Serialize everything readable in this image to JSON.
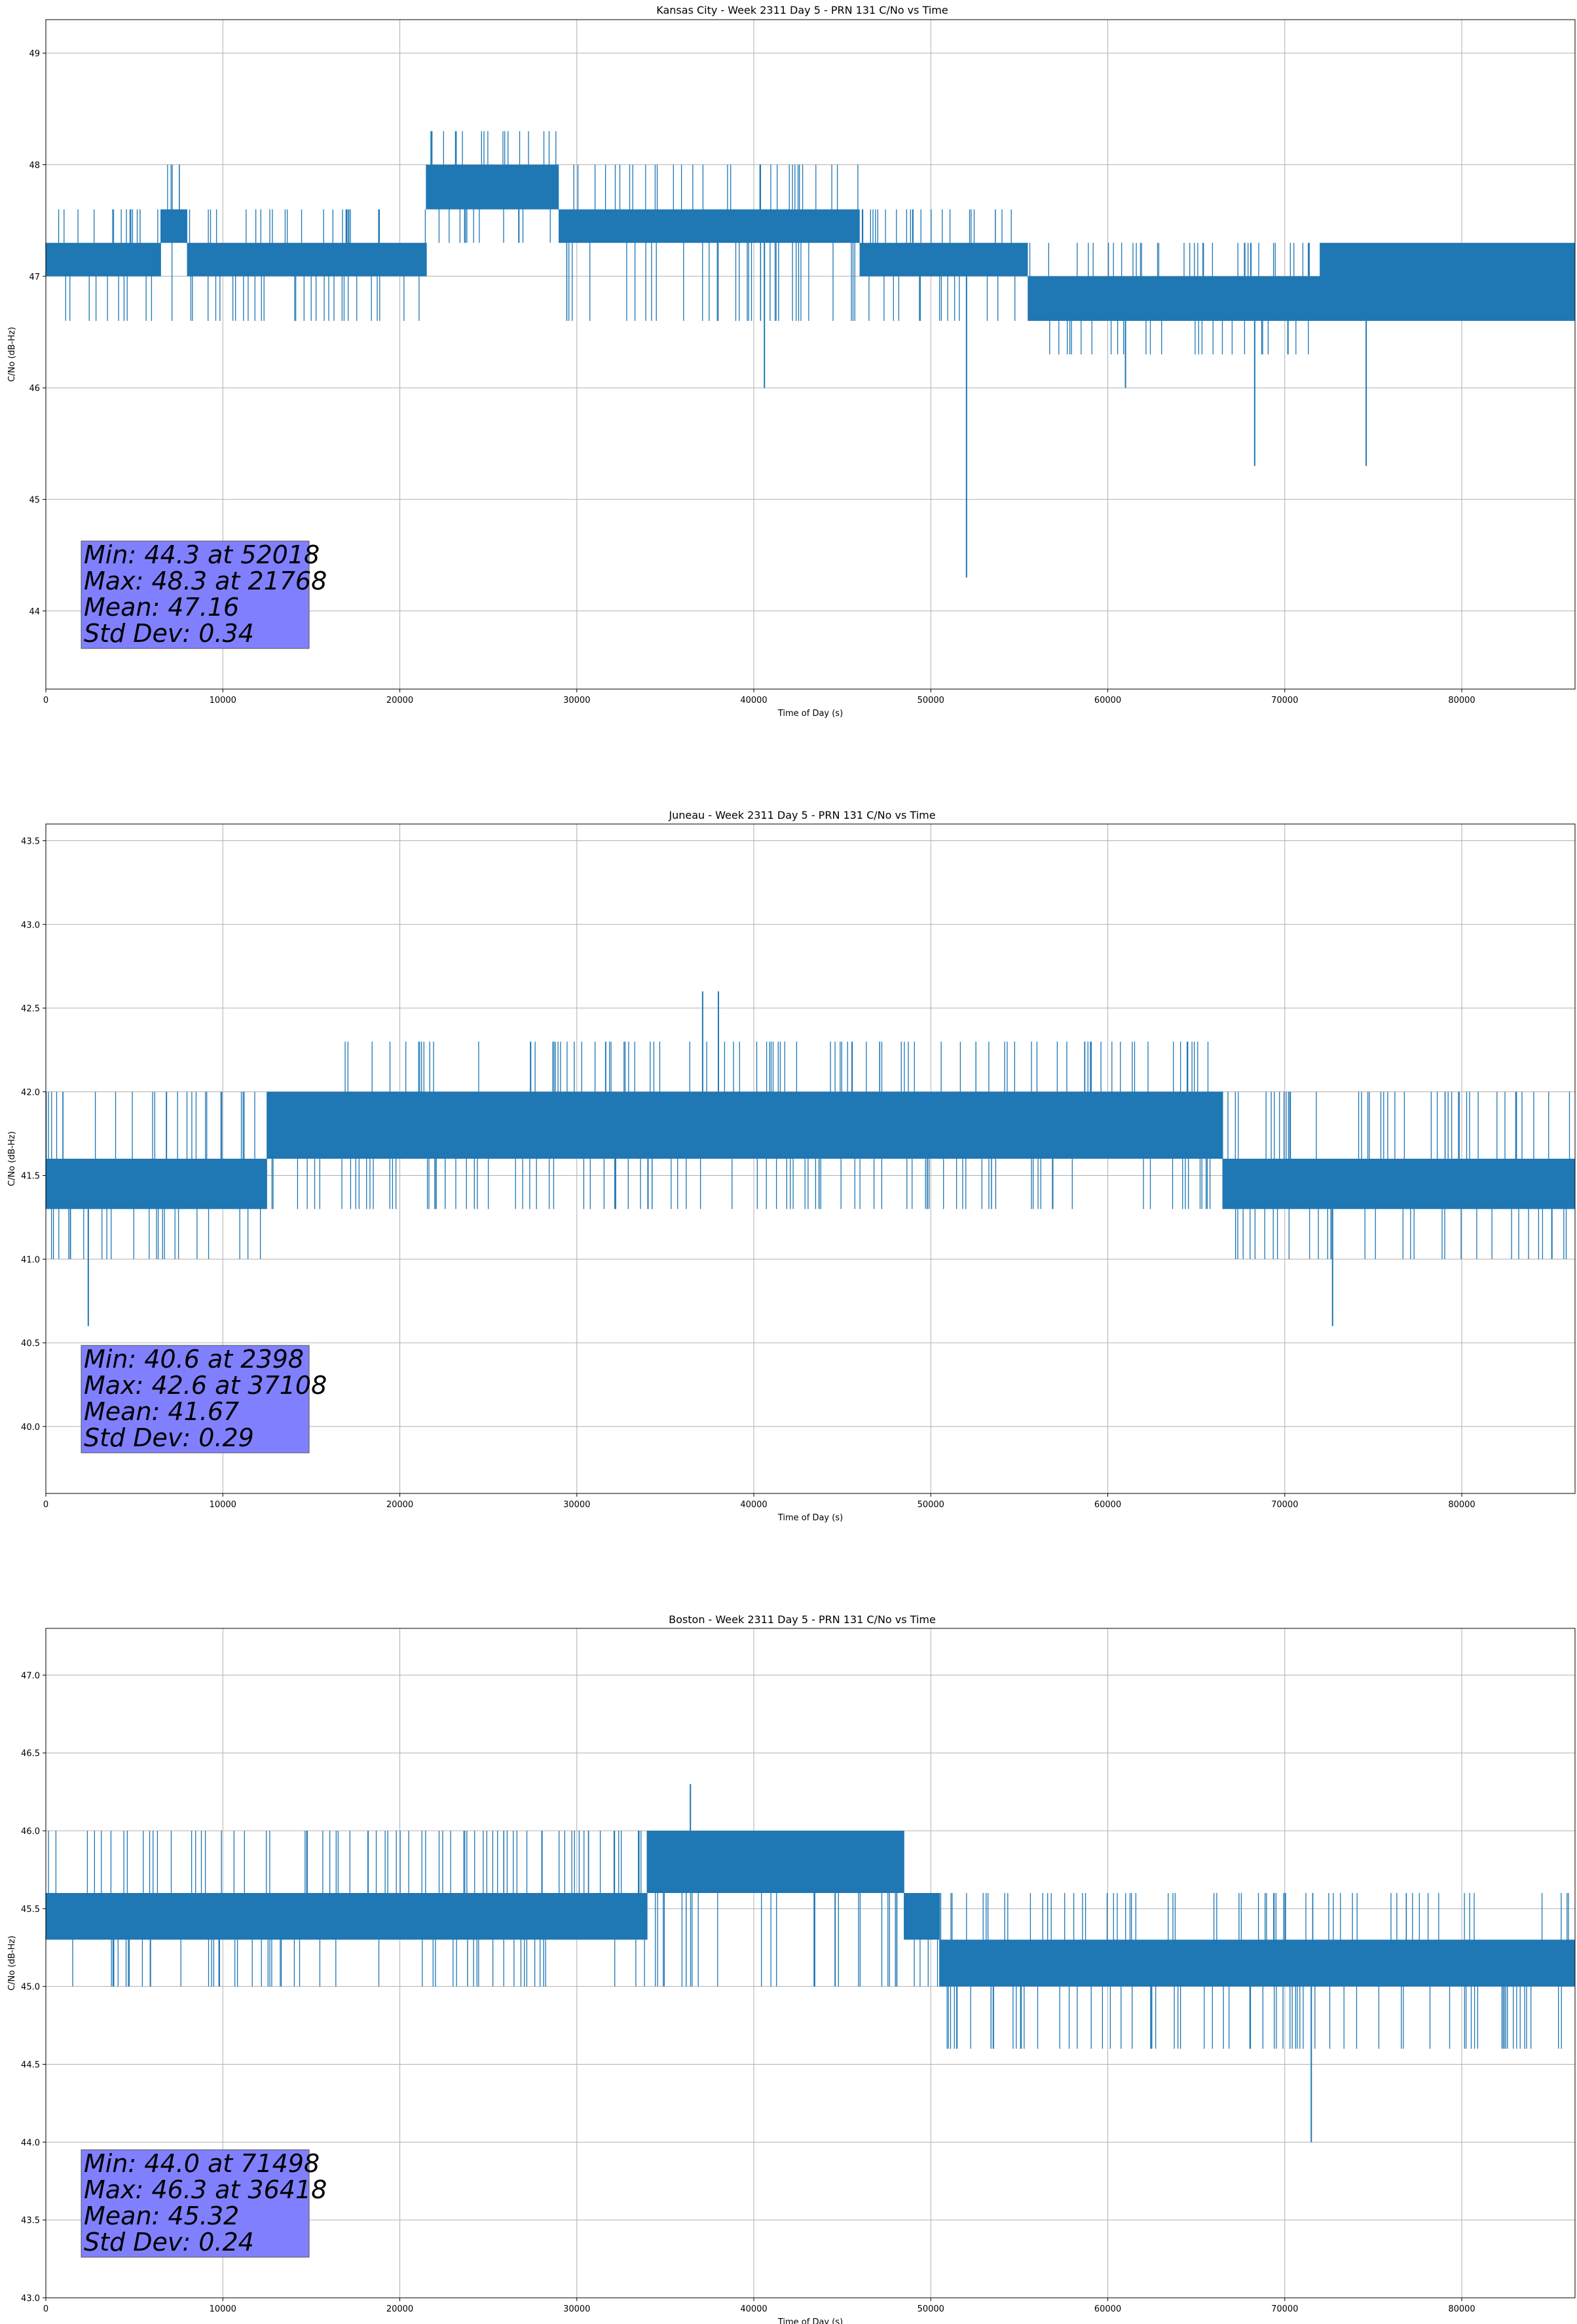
{
  "chart_data": [
    {
      "type": "line",
      "title": "Kansas City - Week 2311 Day 5 - PRN 131 C/No vs Time",
      "xlabel": "Time of Day (s)",
      "ylabel": "C/No (dB-Hz)",
      "xlim": [
        0,
        86400
      ],
      "ylim": [
        43.3,
        49.3
      ],
      "xticks": [
        0,
        10000,
        20000,
        30000,
        40000,
        50000,
        60000,
        70000,
        80000
      ],
      "yticks": [
        "44",
        "45",
        "46",
        "47",
        "48",
        "49"
      ],
      "grid": true,
      "series_color": "#1f77b4",
      "segments": [
        {
          "x": [
            0,
            6500
          ],
          "base": 47.0,
          "high": 47.3,
          "dip_low": 46.6,
          "spike_high": 47.6
        },
        {
          "x": [
            6500,
            8000
          ],
          "base": 47.3,
          "high": 47.6,
          "dip_low": 46.6,
          "spike_high": 48.0
        },
        {
          "x": [
            8000,
            21500
          ],
          "base": 47.0,
          "high": 47.3,
          "dip_low": 46.6,
          "spike_high": 47.6
        },
        {
          "x": [
            21500,
            29000
          ],
          "base": 47.6,
          "high": 48.0,
          "dip_low": 47.3,
          "spike_high": 48.3
        },
        {
          "x": [
            29000,
            46000
          ],
          "base": 47.3,
          "high": 47.6,
          "dip_low": 46.6,
          "spike_high": 48.0
        },
        {
          "x": [
            46000,
            55500
          ],
          "base": 47.0,
          "high": 47.3,
          "dip_low": 46.6,
          "spike_high": 47.6
        },
        {
          "x": [
            55500,
            72000
          ],
          "base": 46.6,
          "high": 47.0,
          "dip_low": 46.3,
          "spike_high": 47.3
        },
        {
          "x": [
            72000,
            86400
          ],
          "base": 46.6,
          "high": 47.3,
          "dip_low": 46.6,
          "spike_high": 47.3
        }
      ],
      "spikes": [
        {
          "x": 52018,
          "y": 44.3
        },
        {
          "x": 21768,
          "y": 48.3
        },
        {
          "x": 40600,
          "y": 46.0
        },
        {
          "x": 68300,
          "y": 45.3
        },
        {
          "x": 74600,
          "y": 45.3
        },
        {
          "x": 61000,
          "y": 46.0
        }
      ],
      "stats": {
        "min": "Min: 44.3 at 52018",
        "max": "Max: 48.3 at 21768",
        "mean": "Mean: 47.16",
        "std": "Std Dev: 0.34"
      },
      "stats_box_color": "#8080ff"
    },
    {
      "type": "line",
      "title": "Juneau - Week 2311 Day 5 - PRN 131 C/No vs Time",
      "xlabel": "Time of Day (s)",
      "ylabel": "C/No (dB-Hz)",
      "xlim": [
        0,
        86400
      ],
      "ylim": [
        39.6,
        43.6
      ],
      "xticks": [
        0,
        10000,
        20000,
        30000,
        40000,
        50000,
        60000,
        70000,
        80000
      ],
      "yticks": [
        "40.0",
        "40.5",
        "41.0",
        "41.5",
        "42.0",
        "42.5",
        "43.0",
        "43.5"
      ],
      "grid": true,
      "series_color": "#1f77b4",
      "segments": [
        {
          "x": [
            0,
            12500
          ],
          "base": 41.3,
          "high": 41.6,
          "dip_low": 41.0,
          "spike_high": 42.0
        },
        {
          "x": [
            12500,
            16500
          ],
          "base": 41.6,
          "high": 42.0,
          "dip_low": 41.3,
          "spike_high": 42.0
        },
        {
          "x": [
            16500,
            43000
          ],
          "base": 41.6,
          "high": 42.0,
          "dip_low": 41.3,
          "spike_high": 42.3
        },
        {
          "x": [
            43000,
            66500
          ],
          "base": 41.6,
          "high": 42.0,
          "dip_low": 41.3,
          "spike_high": 42.3
        },
        {
          "x": [
            66500,
            86400
          ],
          "base": 41.3,
          "high": 41.6,
          "dip_low": 41.0,
          "spike_high": 42.0
        }
      ],
      "spikes": [
        {
          "x": 2398,
          "y": 40.6
        },
        {
          "x": 37108,
          "y": 42.6
        },
        {
          "x": 38000,
          "y": 42.6
        },
        {
          "x": 72700,
          "y": 40.6
        }
      ],
      "stats": {
        "min": "Min: 40.6 at 2398",
        "max": "Max: 42.6 at 37108",
        "mean": "Mean: 41.67",
        "std": "Std Dev: 0.29"
      },
      "stats_box_color": "#8080ff"
    },
    {
      "type": "line",
      "title": "Boston - Week 2311 Day 5 - PRN 131 C/No vs Time",
      "xlabel": "Time of Day (s)",
      "ylabel": "C/No (dB-Hz)",
      "xlim": [
        0,
        86400
      ],
      "ylim": [
        43.0,
        47.3
      ],
      "xticks": [
        0,
        10000,
        20000,
        30000,
        40000,
        50000,
        60000,
        70000,
        80000
      ],
      "yticks": [
        "43.0",
        "43.5",
        "44.0",
        "44.5",
        "45.0",
        "45.5",
        "46.0",
        "46.5",
        "47.0"
      ],
      "grid": true,
      "series_color": "#1f77b4",
      "segments": [
        {
          "x": [
            0,
            34000
          ],
          "base": 45.3,
          "high": 45.6,
          "dip_low": 45.0,
          "spike_high": 46.0
        },
        {
          "x": [
            34000,
            48500
          ],
          "base": 45.6,
          "high": 46.0,
          "dip_low": 45.0,
          "spike_high": 46.0
        },
        {
          "x": [
            48500,
            50500
          ],
          "base": 45.3,
          "high": 45.6,
          "dip_low": 45.0,
          "spike_high": 45.6
        },
        {
          "x": [
            50500,
            86400
          ],
          "base": 45.0,
          "high": 45.3,
          "dip_low": 44.6,
          "spike_high": 45.6
        }
      ],
      "spikes": [
        {
          "x": 71498,
          "y": 44.0
        },
        {
          "x": 36418,
          "y": 46.3
        }
      ],
      "stats": {
        "min": "Min: 44.0 at 71498",
        "max": "Max: 46.3 at 36418",
        "mean": "Mean: 45.32",
        "std": "Std Dev: 0.24"
      },
      "stats_box_color": "#8080ff"
    }
  ]
}
